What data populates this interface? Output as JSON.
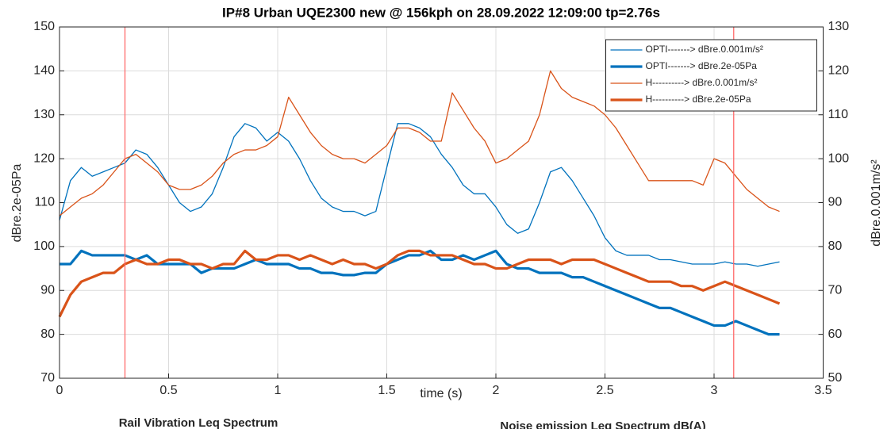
{
  "chart_data": {
    "type": "line",
    "title": "IP#8   Urban UQE2300 new @ 156kph on 28.09.2022 12:09:00  tp=2.76s",
    "x_label": "time (s)",
    "y_label": "dBre.2e-05Pa",
    "y2_label": "dBre.0.001m/s²",
    "x": [
      0,
      0.05,
      0.1,
      0.15,
      0.2,
      0.25,
      0.3,
      0.35,
      0.4,
      0.45,
      0.5,
      0.55,
      0.6,
      0.65,
      0.7,
      0.75,
      0.8,
      0.85,
      0.9,
      0.95,
      1.0,
      1.05,
      1.1,
      1.15,
      1.2,
      1.25,
      1.3,
      1.35,
      1.4,
      1.45,
      1.5,
      1.55,
      1.6,
      1.65,
      1.7,
      1.75,
      1.8,
      1.85,
      1.9,
      1.95,
      2.0,
      2.05,
      2.1,
      2.15,
      2.2,
      2.25,
      2.3,
      2.35,
      2.4,
      2.45,
      2.5,
      2.55,
      2.6,
      2.65,
      2.7,
      2.75,
      2.8,
      2.85,
      2.9,
      2.95,
      3.0,
      3.05,
      3.1,
      3.15,
      3.2,
      3.25,
      3.3
    ],
    "series": [
      {
        "name": "OPTI-------> dBre.0.001m/s²",
        "color": "#0072BD",
        "linewidth": 1.3,
        "axis": "y2",
        "values": [
          86,
          95,
          98,
          96,
          97,
          98,
          99,
          102,
          101,
          98,
          94,
          90,
          88,
          89,
          92,
          98,
          105,
          108,
          107,
          104,
          106,
          104,
          100,
          95,
          91,
          89,
          88,
          88,
          87,
          88,
          98,
          108,
          108,
          107,
          105,
          101,
          98,
          94,
          92,
          92,
          89,
          85,
          83,
          84,
          90,
          97,
          98,
          95,
          91,
          87,
          82,
          79,
          78,
          78,
          78,
          77,
          77,
          76.5,
          76,
          76,
          76,
          76.5,
          76,
          76,
          75.5,
          76,
          76.5
        ]
      },
      {
        "name": "OPTI-------> dBre.2e-05Pa",
        "color": "#0072BD",
        "linewidth": 3.2,
        "values": [
          96,
          96,
          99,
          98,
          98,
          98,
          98,
          97,
          98,
          96,
          96,
          96,
          96,
          94,
          95,
          95,
          95,
          96,
          97,
          96,
          96,
          96,
          95,
          95,
          94,
          94,
          93.5,
          93.5,
          94,
          94,
          96,
          97,
          98,
          98,
          99,
          97,
          97,
          98,
          97,
          98,
          99,
          96,
          95,
          95,
          94,
          94,
          94,
          93,
          93,
          92,
          91,
          90,
          89,
          88,
          87,
          86,
          86,
          85,
          84,
          83,
          82,
          82,
          83,
          82,
          81,
          80,
          80
        ]
      },
      {
        "name": "H----------> dBre.0.001m/s²",
        "color": "#D95319",
        "linewidth": 1.3,
        "axis": "y2",
        "values": [
          87,
          89,
          91,
          92,
          94,
          97,
          100,
          101,
          99,
          97,
          94,
          93,
          93,
          94,
          96,
          99,
          101,
          102,
          102,
          103,
          105,
          114,
          110,
          106,
          103,
          101,
          100,
          100,
          99,
          101,
          103,
          107,
          107,
          106,
          104,
          104,
          115,
          111,
          107,
          104,
          99,
          100,
          102,
          104,
          110,
          120,
          116,
          114,
          113,
          112,
          110,
          107,
          103,
          99,
          95,
          95,
          95,
          95,
          95,
          94,
          100,
          99,
          96,
          93,
          91,
          89,
          88
        ]
      },
      {
        "name": "H----------> dBre.2e-05Pa",
        "color": "#D95319",
        "linewidth": 3.2,
        "values": [
          84,
          89,
          92,
          93,
          94,
          94,
          96,
          97,
          96,
          96,
          97,
          97,
          96,
          96,
          95,
          96,
          96,
          99,
          97,
          97,
          98,
          98,
          97,
          98,
          97,
          96,
          97,
          96,
          96,
          95,
          96,
          98,
          99,
          99,
          98,
          98,
          98,
          97,
          96,
          96,
          95,
          95,
          96,
          97,
          97,
          97,
          96,
          97,
          97,
          97,
          96,
          95,
          94,
          93,
          92,
          92,
          92,
          91,
          91,
          90,
          91,
          92,
          91,
          90,
          89,
          88,
          87
        ]
      }
    ],
    "vlines": [
      0.3,
      3.09
    ],
    "vline_color": "#ff6b6b",
    "xlim": [
      0,
      3.5
    ],
    "xticks": [
      0,
      0.5,
      1,
      1.5,
      2,
      2.5,
      3,
      3.5
    ],
    "ylim": [
      70,
      150
    ],
    "yticks": [
      70,
      80,
      90,
      100,
      110,
      120,
      130,
      140,
      150
    ],
    "y2lim": [
      50,
      130
    ],
    "y2ticks": [
      50,
      60,
      70,
      80,
      90,
      100,
      110,
      120,
      130
    ],
    "grid": true,
    "legend_position": "top-right",
    "annotations": [
      "Rail Vibration Leq Spectrum",
      "Noise emission Leq Spectrum dB(A)"
    ]
  }
}
